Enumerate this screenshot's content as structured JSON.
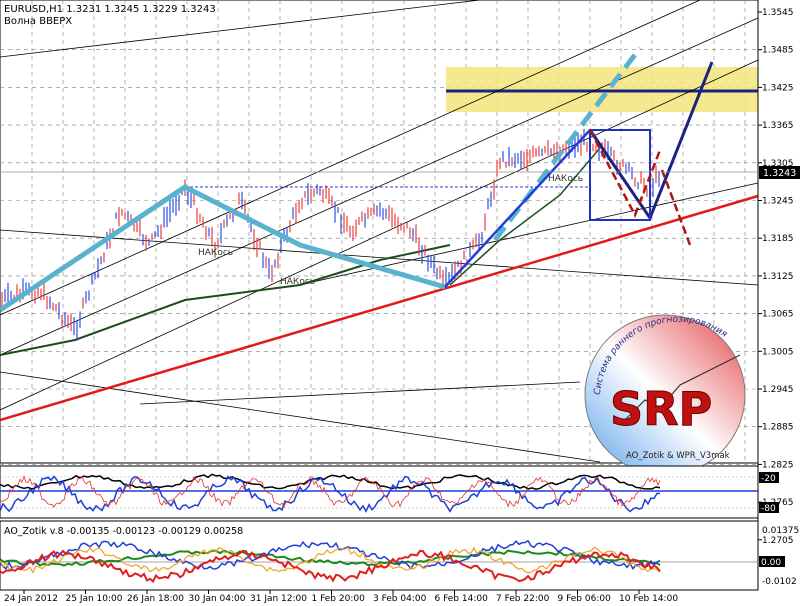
{
  "symbol_line": "EURUSD,H1  1.3231 1.3245 1.3229 1.3243",
  "strategy_label": "Волна ВВЕРХ",
  "current_price": "1.3243",
  "price_axis": [
    "1.3545",
    "1.3485",
    "1.3425",
    "1.3365",
    "1.3305",
    "1.3245",
    "1.3185",
    "1.3125",
    "1.3065",
    "1.3005",
    "1.2945",
    "1.2885",
    "1.2825",
    "1.2765",
    "1.2705"
  ],
  "time_axis": [
    "24 Jan 2012",
    "25 Jan 10:00",
    "26 Jan 18:00",
    "30 Jan 04:00",
    "31 Jan 12:00",
    "1 Feb 20:00",
    "3 Feb 04:00",
    "6 Feb 14:00",
    "7 Feb 22:00",
    "9 Feb 06:00",
    "10 Feb 14:00"
  ],
  "annotations": [
    "НАКось",
    "НАКось",
    "НАКось"
  ],
  "wpr_panel": {
    "levels": [
      "-20",
      "-80"
    ]
  },
  "ao_panel": {
    "label": "AO_Zotik v.8 -0.00135 -0.00123 -0.00129 0.00258",
    "levels": [
      "0.01375",
      "0.00",
      "-0.0102"
    ]
  },
  "logo": {
    "title": "SRP",
    "arc_text": "Система раннего прогнозирования",
    "bottom_text": "AO_Zotik & WPR_V3mak"
  },
  "colors": {
    "grid": "#808080",
    "bull": "#1f3fd8",
    "bear": "#e03030",
    "pattern": "#59b3cf",
    "support": "#e31a1a",
    "zone": "#f4e47a",
    "target": "#1a237e"
  }
}
